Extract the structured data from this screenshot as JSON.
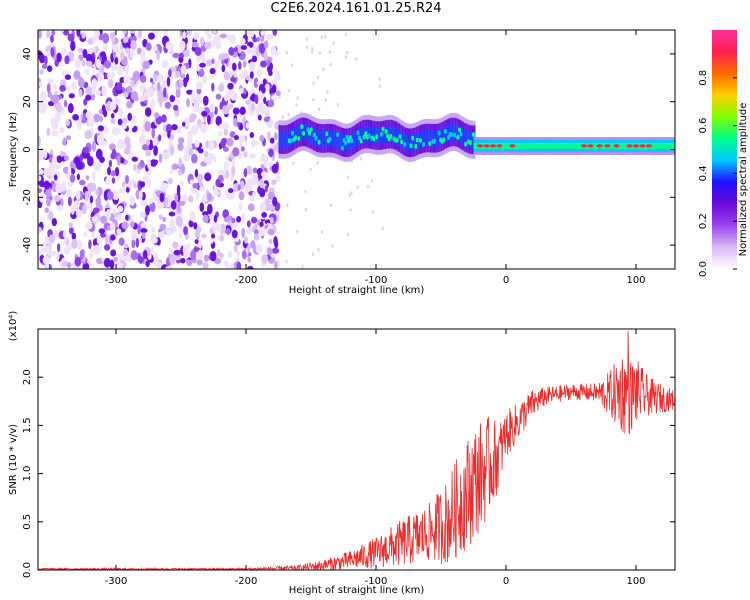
{
  "page": {
    "title": "C2E6.2024.161.01.25.R24"
  },
  "colors": {
    "snr_line": "#ee2a2a",
    "colormap": [
      "#ffffff",
      "#d8b8f4",
      "#9a44ee",
      "#6a0ad8",
      "#1f10ff",
      "#00c8ff",
      "#00ff90",
      "#7fff00",
      "#ffd000",
      "#ff6a00",
      "#ff1f50",
      "#ff30a0"
    ]
  },
  "chart_data": [
    {
      "type": "heatmap",
      "title": "C2E6.2024.161.01.25.R24",
      "xlabel": "Height of straight line (km)",
      "ylabel": "Frequency (Hz)",
      "xlim": [
        -360,
        130
      ],
      "ylim": [
        -50,
        50
      ],
      "xticks": [
        -300,
        -200,
        -100,
        0,
        100
      ],
      "yticks": [
        -40,
        -20,
        0,
        20,
        40
      ],
      "xtick_labels": [
        "-300",
        "-200",
        "-100",
        "0",
        "100"
      ],
      "ytick_labels": [
        "-40",
        "-20",
        "0",
        "20",
        "40"
      ],
      "colorbar": {
        "label": "Normalized spectral amplitude",
        "range": [
          0.0,
          1.0
        ],
        "ticks": [
          0.0,
          0.2,
          0.4,
          0.6,
          0.8
        ],
        "tick_labels": [
          "0.0",
          "0.2",
          "0.4",
          "0.6",
          "0.8"
        ]
      },
      "regions": [
        {
          "x_from": -360,
          "x_to": -175,
          "freq_from": -50,
          "freq_to": 50,
          "amplitude": [
            0.05,
            0.2
          ],
          "pattern": "noise"
        },
        {
          "x_from": -175,
          "x_to": -25,
          "freq_center": 5,
          "freq_halfwidth": 6,
          "amplitude": [
            0.25,
            0.55
          ],
          "pattern": "wavy signal band"
        },
        {
          "x_from": -25,
          "x_to": 130,
          "freq_center": 1.5,
          "freq_halfwidth": 2.5,
          "amplitude": [
            0.5,
            1.0
          ],
          "pattern": "narrow stable line"
        }
      ]
    },
    {
      "type": "line",
      "xlabel": "Height of straight line (km)",
      "ylabel": "SNR (10 * v/v)",
      "y_multiplier": "(x10⁴)",
      "xlim": [
        -360,
        130
      ],
      "ylim": [
        0,
        2.5
      ],
      "xticks": [
        -300,
        -200,
        -100,
        0,
        100
      ],
      "yticks": [
        0.0,
        0.5,
        1.0,
        1.5,
        2.0
      ],
      "xtick_labels": [
        "-300",
        "-200",
        "-100",
        "0",
        "100"
      ],
      "ytick_labels": [
        "0.0",
        "0.5",
        "1.0",
        "1.5",
        "2.0"
      ],
      "series": [
        {
          "x": [
            -360,
            -300,
            -250,
            -200,
            -160,
            -140,
            -120,
            -100,
            -80,
            -60,
            -45,
            -35,
            -25,
            -15,
            -5,
            0,
            10,
            20,
            30,
            50,
            70,
            80,
            90,
            95,
            100,
            110,
            120,
            130
          ],
          "y": [
            0.01,
            0.01,
            0.01,
            0.01,
            0.02,
            0.05,
            0.1,
            0.18,
            0.28,
            0.38,
            0.5,
            0.7,
            0.9,
            1.05,
            1.2,
            1.4,
            1.55,
            1.72,
            1.8,
            1.85,
            1.84,
            1.82,
            1.85,
            1.8,
            1.85,
            1.8,
            1.78,
            1.76
          ],
          "amp": [
            0.01,
            0.01,
            0.01,
            0.01,
            0.03,
            0.06,
            0.1,
            0.16,
            0.25,
            0.3,
            0.45,
            0.55,
            0.6,
            0.55,
            0.35,
            0.25,
            0.2,
            0.15,
            0.1,
            0.08,
            0.1,
            0.25,
            0.45,
            0.4,
            0.35,
            0.2,
            0.15,
            0.1
          ],
          "peak": {
            "x": 94,
            "y": 2.48
          }
        }
      ]
    }
  ]
}
